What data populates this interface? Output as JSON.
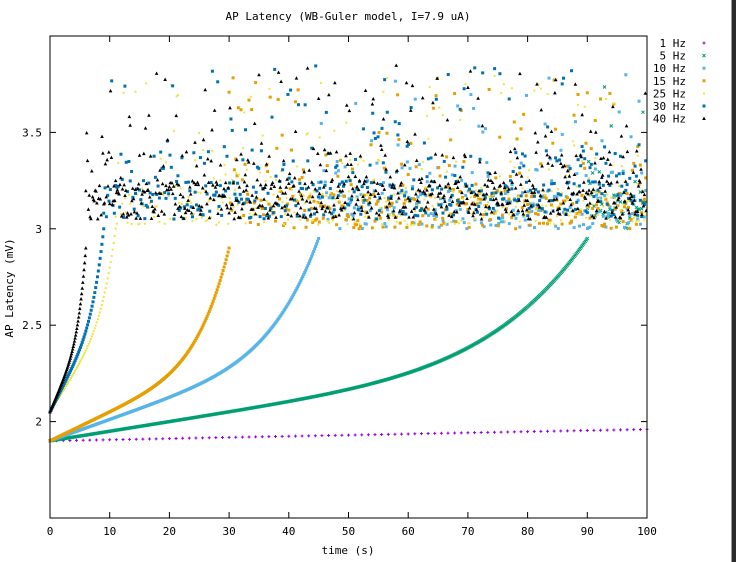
{
  "chart_data": {
    "type": "scatter",
    "title": "AP Latency (WB-Guler model, I=7.9 uA)",
    "xlabel": "time (s)",
    "ylabel": "AP Latency (mV)",
    "xlim": [
      0,
      100
    ],
    "ylim": [
      1.5,
      4.0
    ],
    "x_ticks": [
      "0",
      "10",
      "20",
      "30",
      "40",
      "50",
      "60",
      "70",
      "80",
      "90",
      "100"
    ],
    "y_ticks": [
      "2",
      "2.5",
      "3",
      "3.5"
    ],
    "grid": false,
    "legend_position": "right",
    "series": [
      {
        "name": "1 Hz",
        "color": "#9400d3",
        "marker": "plus",
        "shape": "linear",
        "x_start": 0,
        "x_end": 100,
        "y_start": 1.9,
        "y_end": 1.96,
        "y_knee": 1.96,
        "k": 0,
        "saturates_to": null
      },
      {
        "name": "5 Hz",
        "color": "#009e73",
        "marker": "cross",
        "shape": "rise",
        "x_start": 0,
        "x_end": 90,
        "y_start": 1.9,
        "y_end": 2.95,
        "y_knee": 2.35,
        "k": 6,
        "saturates_to": 3.0
      },
      {
        "name": "10 Hz",
        "color": "#56b4e9",
        "marker": "square",
        "shape": "rise",
        "x_start": 0,
        "x_end": 45,
        "y_start": 1.9,
        "y_end": 2.95,
        "y_knee": 2.4,
        "k": 6,
        "saturates_to": 3.0
      },
      {
        "name": "15 Hz",
        "color": "#e69f00",
        "marker": "square",
        "shape": "rise",
        "x_start": 0,
        "x_end": 30,
        "y_start": 1.9,
        "y_end": 2.9,
        "y_knee": 2.35,
        "k": 6,
        "saturates_to": 3.0
      },
      {
        "name": "25 Hz",
        "color": "#f0e442",
        "marker": "dot",
        "shape": "rise",
        "x_start": 0,
        "x_end": 11,
        "y_start": 2.05,
        "y_end": 3.0,
        "y_knee": 2.6,
        "k": 5,
        "saturates_to": 3.02
      },
      {
        "name": "30 Hz",
        "color": "#0072b2",
        "marker": "square",
        "shape": "rise",
        "x_start": 0,
        "x_end": 9,
        "y_start": 2.05,
        "y_end": 3.0,
        "y_knee": 2.6,
        "k": 5,
        "saturates_to": 3.05
      },
      {
        "name": "40 Hz",
        "color": "#000000",
        "marker": "triangle",
        "shape": "rise",
        "x_start": 0,
        "x_end": 6,
        "y_start": 2.05,
        "y_end": 2.9,
        "y_knee": 2.5,
        "k": 5,
        "saturates_to": 3.05
      }
    ]
  }
}
